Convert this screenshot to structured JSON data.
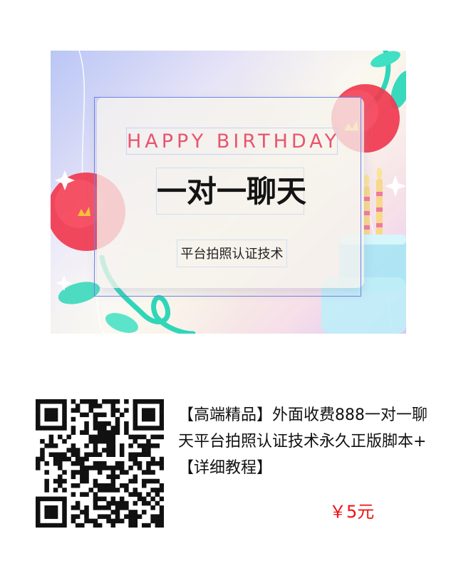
{
  "banner": {
    "headline": "HAPPY BIRTHDAY",
    "title": "一对一聊天",
    "subtitle": "平台拍照认证技术",
    "colors": {
      "headline": "#e8546e",
      "flower": "#f0384f",
      "stem": "#2fd6b8",
      "frame": "#6f82e6"
    },
    "icons": [
      "flower-icon",
      "sparkle-icon",
      "birthday-candle-icon",
      "cake-icon",
      "leaf-icon"
    ]
  },
  "qr": {
    "icon": "qr-code-icon"
  },
  "product": {
    "title": "【高端精品】外面收费888一对一聊天平台拍照认证技术永久正版脚本+【详细教程】",
    "price": "￥5元",
    "price_color": "#ee1111"
  }
}
